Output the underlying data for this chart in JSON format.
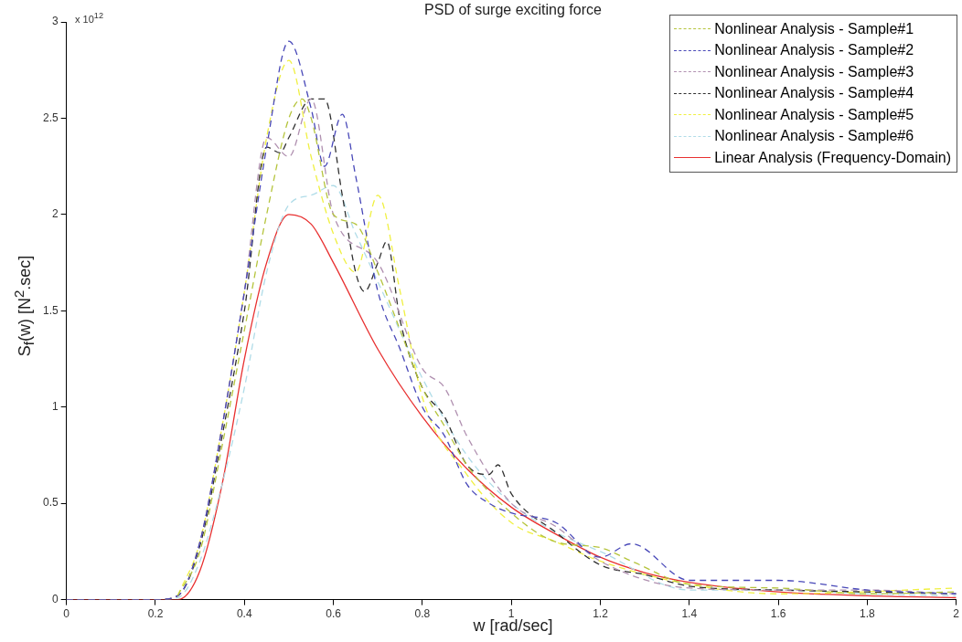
{
  "chart_data": {
    "type": "line",
    "title": "PSD of surge exciting force",
    "xlabel": "w [rad/sec]",
    "ylabel": "S$_{f}$(w) [N$^{2}$.sec]",
    "annotations": [
      "x 10$^{12}$"
    ],
    "xlim": [
      0,
      2
    ],
    "xticks": [
      0,
      0.2,
      0.4,
      0.6,
      0.8,
      1,
      1.2,
      1.4,
      1.6,
      1.8,
      2
    ],
    "ylim": [
      0,
      3
    ],
    "yticks": [
      0,
      0.5,
      1,
      1.5,
      2,
      2.5,
      3
    ],
    "grid": false,
    "legend": "top right",
    "marker": "none",
    "series": [
      {
        "name": "Nonlinear Analysis - Sample#1",
        "color": "#b5c43c",
        "line_style": "dashed",
        "x": [
          0.25,
          0.3,
          0.35,
          0.4,
          0.45,
          0.5,
          0.53,
          0.55,
          0.6,
          0.65,
          0.7,
          0.75,
          0.8,
          0.85,
          0.9,
          1.0,
          1.1,
          1.2,
          1.27,
          1.4,
          1.6,
          1.8,
          2.0
        ],
        "values": [
          0.02,
          0.25,
          0.8,
          1.4,
          2.0,
          2.5,
          2.6,
          2.5,
          2.0,
          1.95,
          1.7,
          1.4,
          1.1,
          0.9,
          0.7,
          0.45,
          0.3,
          0.27,
          0.2,
          0.08,
          0.06,
          0.03,
          0.04
        ]
      },
      {
        "name": "Nonlinear Analysis - Sample#2",
        "color": "#4848b8",
        "line_style": "dashed",
        "x": [
          0,
          0.2,
          0.25,
          0.3,
          0.35,
          0.4,
          0.45,
          0.5,
          0.55,
          0.58,
          0.62,
          0.65,
          0.7,
          0.75,
          0.8,
          0.85,
          0.9,
          0.95,
          1.0,
          1.1,
          1.2,
          1.27,
          1.4,
          1.6,
          1.8,
          2.0
        ],
        "values": [
          0,
          0,
          0.02,
          0.3,
          0.9,
          1.6,
          2.35,
          2.9,
          2.55,
          2.25,
          2.52,
          2.2,
          1.6,
          1.3,
          1.0,
          0.85,
          0.6,
          0.5,
          0.45,
          0.4,
          0.22,
          0.29,
          0.1,
          0.1,
          0.05,
          0.03
        ]
      },
      {
        "name": "Nonlinear Analysis - Sample#3",
        "color": "#b090b0",
        "line_style": "dashed",
        "x": [
          0,
          0.2,
          0.25,
          0.3,
          0.35,
          0.4,
          0.45,
          0.5,
          0.55,
          0.6,
          0.7,
          0.8,
          0.85,
          0.9,
          1.0,
          1.1,
          1.2,
          1.4,
          1.6,
          1.8,
          2.0
        ],
        "values": [
          0,
          0,
          0.02,
          0.3,
          0.9,
          1.6,
          2.4,
          2.3,
          2.6,
          2.0,
          1.75,
          1.2,
          1.1,
          0.85,
          0.5,
          0.38,
          0.2,
          0.06,
          0.05,
          0.05,
          0.03
        ]
      },
      {
        "name": "Nonlinear Analysis - Sample#4",
        "color": "#303030",
        "line_style": "dashed",
        "x": [
          0,
          0.2,
          0.25,
          0.3,
          0.35,
          0.4,
          0.45,
          0.48,
          0.5,
          0.55,
          0.58,
          0.62,
          0.65,
          0.67,
          0.7,
          0.72,
          0.75,
          0.8,
          0.85,
          0.9,
          0.95,
          0.97,
          1.0,
          1.1,
          1.2,
          1.3,
          1.4,
          1.6,
          1.8,
          2.0
        ],
        "values": [
          0,
          0,
          0.02,
          0.28,
          0.85,
          1.5,
          2.35,
          2.32,
          2.4,
          2.6,
          2.6,
          2.1,
          1.7,
          1.6,
          1.75,
          1.86,
          1.45,
          1.1,
          0.95,
          0.7,
          0.65,
          0.7,
          0.55,
          0.35,
          0.18,
          0.13,
          0.07,
          0.05,
          0.04,
          0.03
        ]
      },
      {
        "name": "Nonlinear Analysis - Sample#5",
        "color": "#f0f040",
        "line_style": "dashed",
        "x": [
          0.25,
          0.3,
          0.35,
          0.4,
          0.45,
          0.5,
          0.55,
          0.6,
          0.65,
          0.7,
          0.75,
          0.8,
          0.9,
          1.0,
          1.1,
          1.2,
          1.4,
          1.6,
          2.0
        ],
        "values": [
          0.02,
          0.3,
          0.9,
          1.6,
          2.4,
          2.8,
          2.3,
          1.9,
          1.7,
          2.1,
          1.6,
          1.05,
          0.65,
          0.4,
          0.3,
          0.2,
          0.08,
          0.03,
          0.06
        ]
      },
      {
        "name": "Nonlinear Analysis - Sample#6",
        "color": "#b0dce8",
        "line_style": "dashed",
        "x": [
          0,
          0.2,
          0.25,
          0.3,
          0.35,
          0.4,
          0.45,
          0.5,
          0.55,
          0.6,
          0.65,
          0.7,
          0.8,
          0.9,
          1.0,
          1.1,
          1.2,
          1.4,
          1.6,
          1.8,
          2.0
        ],
        "values": [
          0,
          0,
          0.01,
          0.2,
          0.6,
          1.1,
          1.7,
          2.05,
          2.1,
          2.15,
          1.9,
          1.65,
          1.15,
          0.75,
          0.5,
          0.35,
          0.25,
          0.05,
          0.05,
          0.03,
          0.02
        ]
      },
      {
        "name": "Linear Analysis (Frequency-Domain)",
        "color": "#e83030",
        "line_style": "solid",
        "x": [
          0,
          0.2,
          0.25,
          0.3,
          0.35,
          0.4,
          0.45,
          0.5,
          0.55,
          0.6,
          0.7,
          0.8,
          0.9,
          1.0,
          1.1,
          1.2,
          1.3,
          1.4,
          1.6,
          1.8,
          2.0
        ],
        "values": [
          0,
          0,
          0,
          0.15,
          0.6,
          1.25,
          1.75,
          2.0,
          1.95,
          1.75,
          1.3,
          0.95,
          0.68,
          0.48,
          0.34,
          0.22,
          0.14,
          0.09,
          0.04,
          0.02,
          0.01
        ]
      }
    ]
  }
}
